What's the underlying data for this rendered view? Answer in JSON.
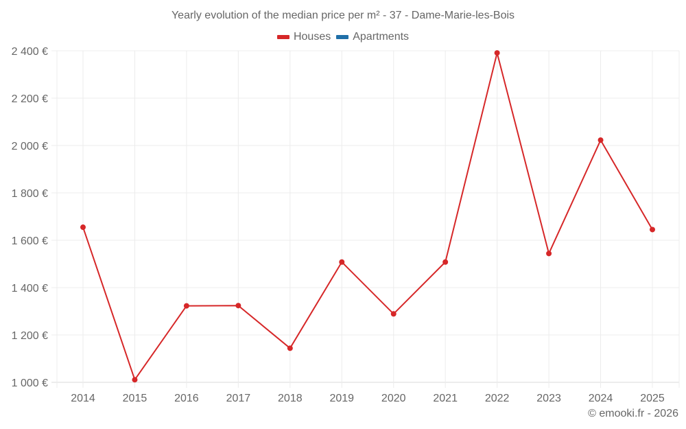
{
  "chart_data": {
    "type": "line",
    "title": "Yearly evolution of the median price per m² - 37 - Dame-Marie-les-Bois",
    "xlabel": "",
    "ylabel": "",
    "categories": [
      "2014",
      "2015",
      "2016",
      "2017",
      "2018",
      "2019",
      "2020",
      "2021",
      "2022",
      "2023",
      "2024",
      "2025"
    ],
    "series": [
      {
        "name": "Houses",
        "color": "#d62728",
        "values": [
          1655,
          1011,
          1323,
          1324,
          1144,
          1508,
          1289,
          1508,
          2391,
          1544,
          2023,
          1645
        ]
      },
      {
        "name": "Apartments",
        "color": "#1f6fa8",
        "values": []
      }
    ],
    "yticks": [
      1000,
      1200,
      1400,
      1600,
      1800,
      2000,
      2200,
      2400
    ],
    "ytick_labels": [
      "1 000 €",
      "1 200 €",
      "1 400 €",
      "1 600 €",
      "1 800 €",
      "2 000 €",
      "2 200 €",
      "2 400 €"
    ],
    "ylim": [
      1000,
      2400
    ],
    "grid": true,
    "legend_position": "top"
  },
  "title": "Yearly evolution of the median price per m² - 37 - Dame-Marie-les-Bois",
  "legend": [
    {
      "label": "Houses",
      "color": "#d62728"
    },
    {
      "label": "Apartments",
      "color": "#1f6fa8"
    }
  ],
  "credit": "© emooki.fr - 2026"
}
